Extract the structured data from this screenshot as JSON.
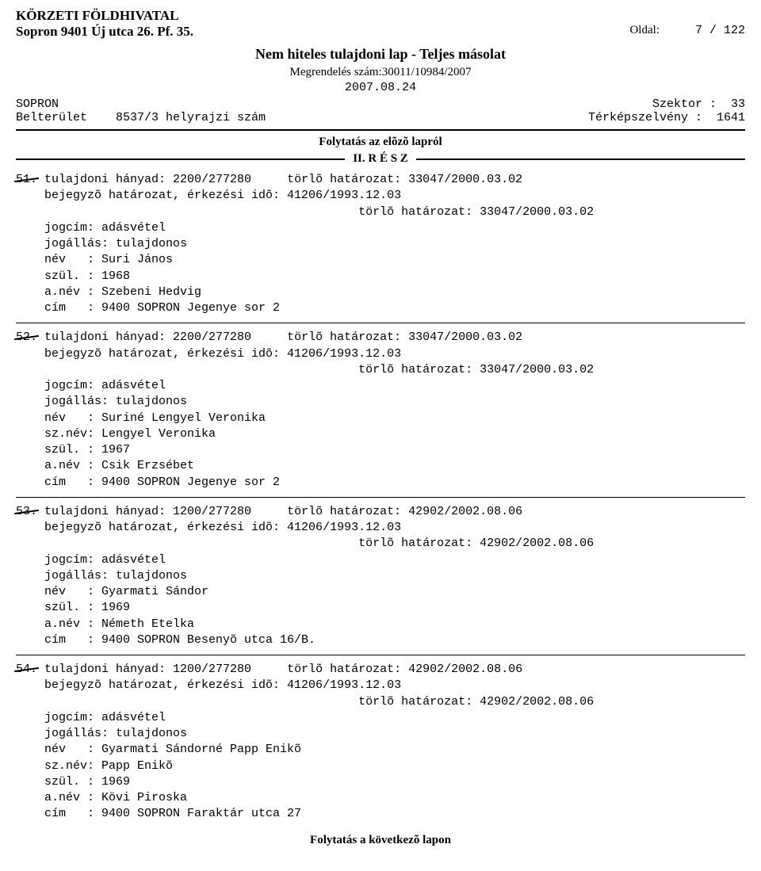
{
  "header": {
    "office": "KÖRZETI FÖLDHIVATAL",
    "address": "Sopron 9401 Új utca 26. Pf. 35.",
    "page_label": "Oldal:",
    "page_no": "7 / 122",
    "title": "Nem hiteles tulajdoni lap - Teljes másolat",
    "order_label": "Megrendelés szám:30011/10984/2007",
    "date": "2007.08.24"
  },
  "meta": {
    "city": "SOPRON",
    "area_label": "Belterület",
    "parcel": "8537/3 helyrajzi szám",
    "sector_label": "Szektor :",
    "sector": "33",
    "mapsheet_label": "Térképszelvény :",
    "mapsheet": "1641"
  },
  "continuation_top": "Folytatás az elõzõ lapról",
  "section_label": "II. R É S Z",
  "entries": [
    {
      "num": "51.",
      "share_label": "tulajdoni hányad: 2200/277280",
      "del_decision_top": "törlõ határozat: 33047/2000.03.02",
      "reg_line": "bejegyzõ határozat, érkezési idõ: 41206/1993.12.03",
      "del_decision_right": "törlõ határozat: 33047/2000.03.02",
      "lines": [
        "jogcím: adásvétel",
        "jogállás: tulajdonos",
        "név   : Suri János",
        "szül. : 1968",
        "a.név : Szebeni Hedvig",
        "cím   : 9400 SOPRON Jegenye sor 2"
      ]
    },
    {
      "num": "52.",
      "share_label": "tulajdoni hányad: 2200/277280",
      "del_decision_top": "törlõ határozat: 33047/2000.03.02",
      "reg_line": "bejegyzõ határozat, érkezési idõ: 41206/1993.12.03",
      "del_decision_right": "törlõ határozat: 33047/2000.03.02",
      "lines": [
        "jogcím: adásvétel",
        "jogállás: tulajdonos",
        "név   : Suriné Lengyel Veronika",
        "sz.név: Lengyel Veronika",
        "szül. : 1967",
        "a.név : Csik Erzsébet",
        "cím   : 9400 SOPRON Jegenye sor 2"
      ]
    },
    {
      "num": "53.",
      "share_label": "tulajdoni hányad: 1200/277280",
      "del_decision_top": "törlõ határozat: 42902/2002.08.06",
      "reg_line": "bejegyzõ határozat, érkezési idõ: 41206/1993.12.03",
      "del_decision_right": "törlõ határozat: 42902/2002.08.06",
      "lines": [
        "jogcím: adásvétel",
        "jogállás: tulajdonos",
        "név   : Gyarmati Sándor",
        "szül. : 1969",
        "a.név : Németh Etelka",
        "cím   : 9400 SOPRON Besenyõ utca 16/B."
      ]
    },
    {
      "num": "54.",
      "share_label": "tulajdoni hányad: 1200/277280",
      "del_decision_top": "törlõ határozat: 42902/2002.08.06",
      "reg_line": "bejegyzõ határozat, érkezési idõ: 41206/1993.12.03",
      "del_decision_right": "törlõ határozat: 42902/2002.08.06",
      "lines": [
        "jogcím: adásvétel",
        "jogállás: tulajdonos",
        "név   : Gyarmati Sándorné Papp Enikõ",
        "sz.név: Papp Enikõ",
        "szül. : 1969",
        "a.név : Kövi Piroska",
        "cím   : 9400 SOPRON Faraktár utca 27"
      ]
    }
  ],
  "continuation_bottom": "Folytatás a következõ lapon"
}
